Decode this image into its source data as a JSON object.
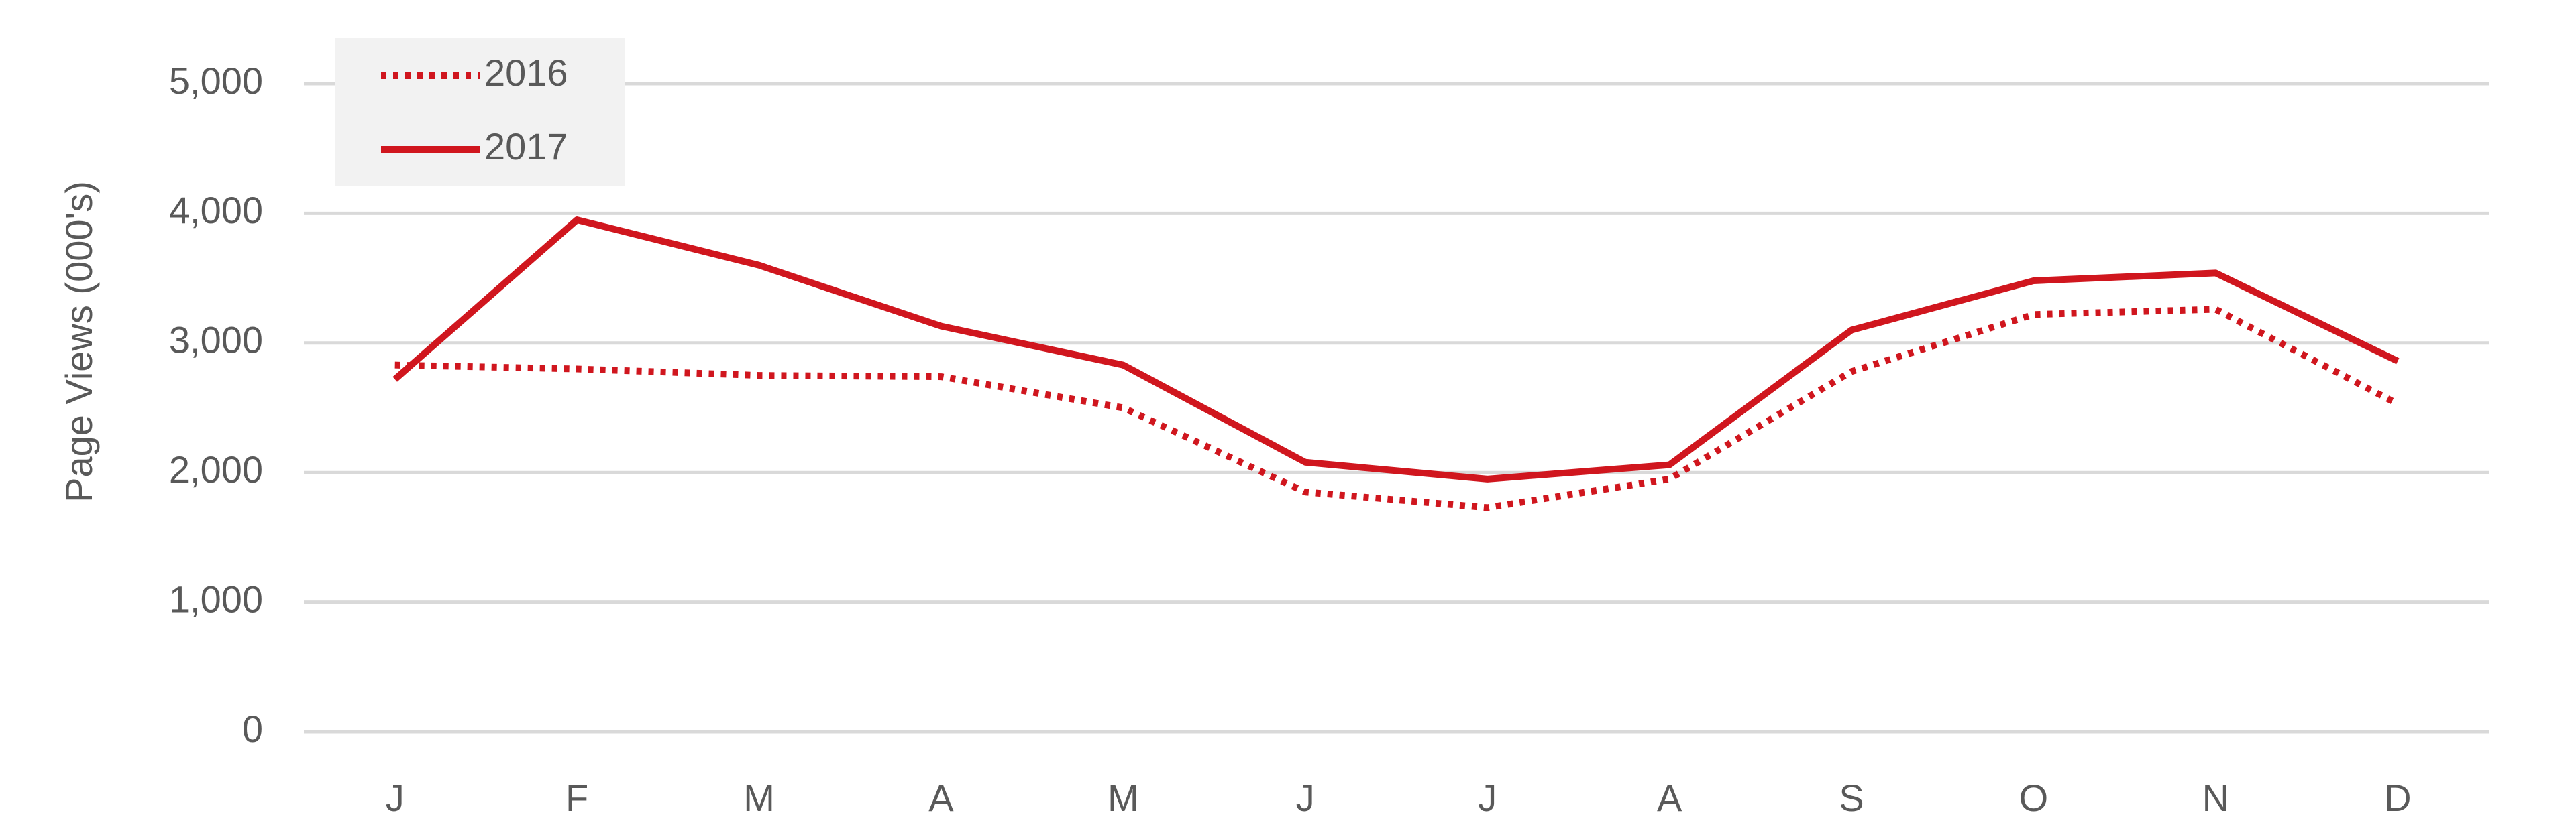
{
  "chart_data": {
    "type": "line",
    "y_label": "Page Views (000's)",
    "categories": [
      "J",
      "F",
      "M",
      "A",
      "M",
      "J",
      "J",
      "A",
      "S",
      "O",
      "N",
      "D"
    ],
    "series": [
      {
        "name": "2016",
        "color": "#d0161e",
        "line_style": "dotted",
        "values": [
          2830,
          2800,
          2750,
          2740,
          2500,
          1850,
          1730,
          1950,
          2780,
          3220,
          3260,
          2530
        ]
      },
      {
        "name": "2017",
        "color": "#d0161e",
        "line_style": "solid",
        "values": [
          2720,
          3950,
          3600,
          3130,
          2830,
          2080,
          1950,
          2060,
          3100,
          3480,
          3540,
          2860
        ]
      }
    ],
    "ylim": [
      0,
      5000
    ],
    "yticks": [
      0,
      {
        "value": 1000,
        "label": "1,000"
      },
      {
        "value": 2000,
        "label": "2,000"
      },
      {
        "value": 3000,
        "label": "3,000"
      },
      {
        "value": 4000,
        "label": "4,000"
      },
      {
        "value": 5000,
        "label": "5,000"
      }
    ],
    "grid": true,
    "legend": "upper left"
  }
}
